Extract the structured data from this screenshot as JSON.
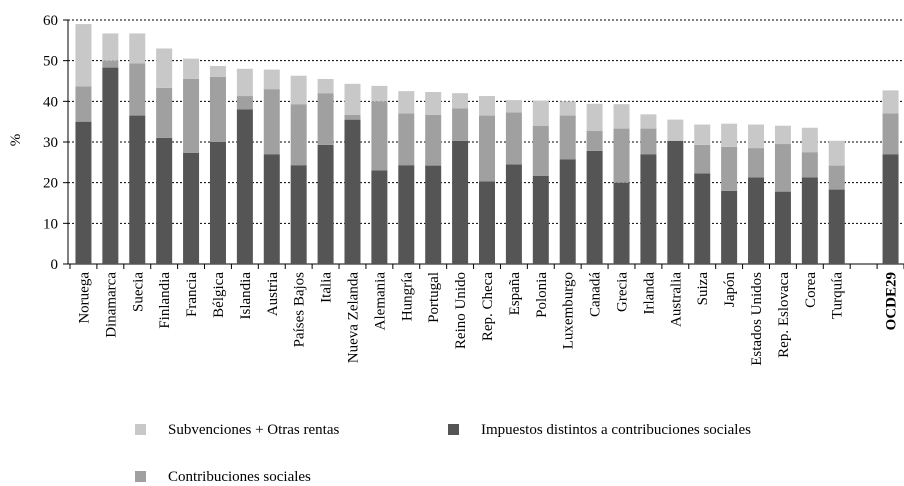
{
  "chart_data": {
    "type": "stacked_bar",
    "y_label": "%",
    "categories": [
      "Noruega",
      "Dinamarca",
      "Suecia",
      "Finlandia",
      "Francia",
      "Bélgica",
      "Islandia",
      "Austria",
      "Países Bajos",
      "Italia",
      "Nueva Zelanda",
      "Alemania",
      "Hungría",
      "Portugal",
      "Reino Unido",
      "Rep. Checa",
      "España",
      "Polonia",
      "Luxemburgo",
      "Canadá",
      "Grecia",
      "Irlanda",
      "Australia",
      "Suiza",
      "Japón",
      "Estados Unidos",
      "Rep. Eslovaca",
      "Corea",
      "Turquía",
      null,
      "OCDE29"
    ],
    "series": [
      {
        "name": "Subvenciones + Otras rentas",
        "color": "#c8c8c8",
        "values": [
          15.3,
          6.7,
          7.4,
          9.7,
          5,
          2.7,
          6.7,
          4.8,
          7,
          3.5,
          7.6,
          3.8,
          5.5,
          5.6,
          3.7,
          4.8,
          3,
          6.2,
          3.5,
          6.7,
          6,
          3.5,
          5.2,
          5,
          5.7,
          5.8,
          4.5,
          6,
          6.1,
          null,
          5.7
        ]
      },
      {
        "name": "Impuestos distintos a contribuciones sociales",
        "color": "#555555",
        "values": [
          35,
          48.3,
          36.5,
          31,
          27.3,
          30,
          38,
          27,
          24.3,
          29.3,
          35.5,
          23,
          24.3,
          24.2,
          30.3,
          20.3,
          24.5,
          21.7,
          25.7,
          27.8,
          20,
          27,
          30.3,
          22.3,
          18,
          21.3,
          17.8,
          21.3,
          18.3,
          null,
          27
        ]
      },
      {
        "name": "Contribuciones sociales",
        "color": "#a0a0a0",
        "values": [
          8.7,
          1.7,
          12.8,
          12.3,
          18.2,
          16,
          3.3,
          16,
          15,
          12.7,
          1.2,
          17,
          12.7,
          12.5,
          8,
          16.2,
          12.8,
          12.3,
          10.8,
          4.9,
          13.3,
          6.3,
          0,
          7,
          10.8,
          7.2,
          11.7,
          6.2,
          5.9,
          null,
          10
        ]
      }
    ],
    "ylim": [
      0,
      60
    ],
    "yticks": [
      0,
      10,
      20,
      30,
      40,
      50,
      60
    ],
    "grid": true
  }
}
